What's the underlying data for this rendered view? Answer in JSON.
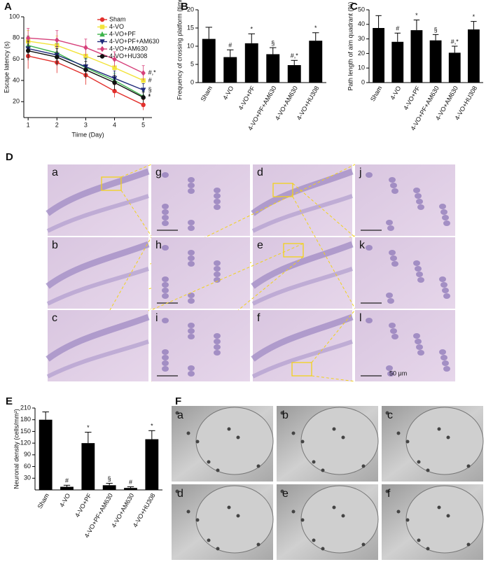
{
  "figure": {
    "panel_labels": [
      "A",
      "B",
      "C",
      "D",
      "E",
      "F"
    ],
    "histology": {
      "labels": [
        "a",
        "g",
        "d",
        "j",
        "b",
        "h",
        "e",
        "k",
        "c",
        "i",
        "f",
        "l"
      ],
      "scale_bar": "50 μm"
    },
    "ultrastructure": {
      "labels": [
        "a",
        "b",
        "c",
        "d",
        "e",
        "f"
      ]
    }
  },
  "chart_data": [
    {
      "type": "line",
      "xlabel": "Tiime (Day)",
      "ylabel": "Escape latency (s)",
      "x": [
        1,
        2,
        3,
        4,
        5
      ],
      "xlim": [
        0.85,
        5.3
      ],
      "xticks": [
        1,
        2,
        3,
        4,
        5
      ],
      "ylim": [
        5,
        100
      ],
      "yticks": [
        20,
        40,
        60,
        80,
        100
      ],
      "legend": "upper right",
      "series": [
        {
          "name": "Sham",
          "color": "#e2302c",
          "marker": "circle",
          "values": [
            63,
            57,
            45,
            30,
            17
          ],
          "errors": [
            12,
            10,
            9,
            6,
            5
          ]
        },
        {
          "name": "4-VO",
          "color": "#f2e33a",
          "marker": "square",
          "values": [
            77,
            73,
            63,
            52,
            40
          ],
          "errors": [
            10,
            9,
            8,
            7,
            6
          ],
          "end_label": "#"
        },
        {
          "name": "4-VO+PF",
          "color": "#3cb44a",
          "marker": "triangle-up",
          "values": [
            73,
            66,
            52,
            40,
            25
          ],
          "errors": [
            9,
            9,
            8,
            7,
            5
          ],
          "end_label": "*"
        },
        {
          "name": "4-VO+PF+AM630",
          "color": "#1f2a7a",
          "marker": "triangle-down",
          "values": [
            70,
            64,
            53,
            42,
            31
          ],
          "errors": [
            9,
            8,
            8,
            7,
            6
          ],
          "end_label": "§"
        },
        {
          "name": "4-VO+AM630",
          "color": "#d6407a",
          "marker": "diamond",
          "values": [
            80,
            78,
            71,
            60,
            47
          ],
          "errors": [
            9,
            9,
            8,
            7,
            7
          ],
          "end_label": "#,*"
        },
        {
          "name": "4-VO+HU308",
          "color": "#111111",
          "marker": "circle",
          "values": [
            68,
            62,
            50,
            38,
            24
          ],
          "errors": [
            9,
            8,
            8,
            7,
            5
          ],
          "end_label": "*"
        }
      ]
    },
    {
      "type": "bar",
      "ylabel": "Frequency of crossing platform (times)",
      "color": "#000000",
      "categories": [
        "Sham",
        "4-VO",
        "4-VO+PF",
        "4-VO+PF+AM630",
        "4-VO+AM630",
        "4-VO+HU308"
      ],
      "values": [
        12,
        7,
        10.8,
        7.8,
        4.8,
        11.5
      ],
      "errors": [
        3.2,
        2,
        2.6,
        1.8,
        1.3,
        2.2
      ],
      "markers": [
        null,
        "#",
        "*",
        "§",
        "#,*",
        "*"
      ],
      "ylim": [
        0,
        20
      ],
      "yticks": [
        0,
        5,
        10,
        15,
        20
      ]
    },
    {
      "type": "bar",
      "ylabel": "Path length of aim quadrant (%)",
      "color": "#000000",
      "categories": [
        "Sham",
        "4-VO",
        "4-VO+PF",
        "4-VO+PF+AM630",
        "4-VO+AM630",
        "4-VO+HU308"
      ],
      "values": [
        37.5,
        28,
        36,
        29,
        20.5,
        36.5
      ],
      "errors": [
        8.5,
        6,
        7,
        4,
        4.5,
        5.5
      ],
      "markers": [
        null,
        "#",
        "*",
        "§",
        "#,*",
        "*"
      ],
      "ylim": [
        0,
        50
      ],
      "yticks": [
        0,
        10,
        20,
        30,
        40,
        50
      ]
    },
    {
      "type": "bar",
      "ylabel": "Neuronal density (cells/mm²)",
      "color": "#000000",
      "categories": [
        "Sham",
        "4-VO",
        "4-VO+PF",
        "4-VO+PF+AM630",
        "4-VO+AM630",
        "4-VO+HU308"
      ],
      "values": [
        180,
        8,
        120,
        12,
        5,
        130
      ],
      "errors": [
        20,
        4,
        28,
        5,
        3,
        22
      ],
      "markers": [
        null,
        "#",
        "*",
        "§",
        "#",
        "*"
      ],
      "ylim": [
        0,
        210
      ],
      "yticks": [
        30,
        60,
        90,
        120,
        150,
        180,
        210
      ]
    }
  ]
}
